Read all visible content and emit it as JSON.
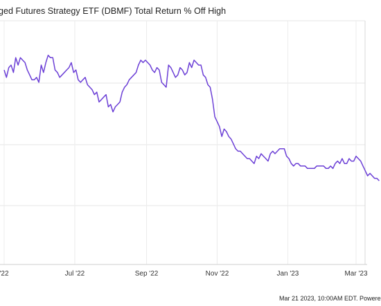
{
  "chart_data": {
    "type": "line",
    "title": "ged Futures Strategy ETF (DBMF) Total Return % Off High",
    "xlabel": "",
    "ylabel": "",
    "x_tick_labels": [
      "'22",
      "Jul '22",
      "Sep '22",
      "Nov '22",
      "Jan '23",
      "Mar '23"
    ],
    "x_tick_dates": [
      "2022-05-01",
      "2022-07-01",
      "2022-09-01",
      "2022-11-01",
      "2023-01-01",
      "2023-03-01"
    ],
    "y_tick_labels": [],
    "grid": true,
    "legend": "none",
    "series": [
      {
        "color": "#6b3fd6",
        "x": [
          "2022-05-01",
          "2022-05-03",
          "2022-05-05",
          "2022-05-07",
          "2022-05-09",
          "2022-05-11",
          "2022-05-13",
          "2022-05-15",
          "2022-05-17",
          "2022-05-19",
          "2022-05-21",
          "2022-05-23",
          "2022-05-25",
          "2022-05-27",
          "2022-05-29",
          "2022-05-31",
          "2022-06-02",
          "2022-06-04",
          "2022-06-06",
          "2022-06-08",
          "2022-06-10",
          "2022-06-12",
          "2022-06-14",
          "2022-06-16",
          "2022-06-18",
          "2022-06-20",
          "2022-06-22",
          "2022-06-24",
          "2022-06-26",
          "2022-06-28",
          "2022-06-30",
          "2022-07-02",
          "2022-07-04",
          "2022-07-06",
          "2022-07-08",
          "2022-07-10",
          "2022-07-12",
          "2022-07-14",
          "2022-07-16",
          "2022-07-18",
          "2022-07-20",
          "2022-07-22",
          "2022-07-24",
          "2022-07-26",
          "2022-07-28",
          "2022-07-30",
          "2022-08-01",
          "2022-08-03",
          "2022-08-05",
          "2022-08-07",
          "2022-08-09",
          "2022-08-11",
          "2022-08-13",
          "2022-08-15",
          "2022-08-17",
          "2022-08-19",
          "2022-08-21",
          "2022-08-23",
          "2022-08-25",
          "2022-08-27",
          "2022-08-29",
          "2022-08-31",
          "2022-09-02",
          "2022-09-04",
          "2022-09-06",
          "2022-09-08",
          "2022-09-10",
          "2022-09-12",
          "2022-09-14",
          "2022-09-16",
          "2022-09-18",
          "2022-09-20",
          "2022-09-22",
          "2022-09-24",
          "2022-09-26",
          "2022-09-28",
          "2022-09-30",
          "2022-10-02",
          "2022-10-04",
          "2022-10-06",
          "2022-10-08",
          "2022-10-10",
          "2022-10-12",
          "2022-10-14",
          "2022-10-16",
          "2022-10-18",
          "2022-10-20",
          "2022-10-22",
          "2022-10-24",
          "2022-10-26",
          "2022-10-28",
          "2022-10-30",
          "2022-11-01",
          "2022-11-03",
          "2022-11-05",
          "2022-11-07",
          "2022-11-09",
          "2022-11-11",
          "2022-11-13",
          "2022-11-15",
          "2022-11-17",
          "2022-11-19",
          "2022-11-21",
          "2022-11-23",
          "2022-11-25",
          "2022-11-27",
          "2022-11-29",
          "2022-12-01",
          "2022-12-03",
          "2022-12-05",
          "2022-12-07",
          "2022-12-09",
          "2022-12-11",
          "2022-12-13",
          "2022-12-15",
          "2022-12-17",
          "2022-12-19",
          "2022-12-21",
          "2022-12-23",
          "2022-12-25",
          "2022-12-27",
          "2022-12-29",
          "2022-12-31",
          "2023-01-02",
          "2023-01-04",
          "2023-01-06",
          "2023-01-08",
          "2023-01-10",
          "2023-01-12",
          "2023-01-14",
          "2023-01-16",
          "2023-01-18",
          "2023-01-20",
          "2023-01-22",
          "2023-01-24",
          "2023-01-26",
          "2023-01-28",
          "2023-01-30",
          "2023-02-01",
          "2023-02-03",
          "2023-02-05",
          "2023-02-07",
          "2023-02-09",
          "2023-02-11",
          "2023-02-13",
          "2023-02-15",
          "2023-02-17",
          "2023-02-19",
          "2023-02-21",
          "2023-02-23",
          "2023-02-25",
          "2023-02-27",
          "2023-03-01",
          "2023-03-03",
          "2023-03-05",
          "2023-03-07",
          "2023-03-09",
          "2023-03-11",
          "2023-03-13",
          "2023-03-15",
          "2023-03-17",
          "2023-03-19",
          "2023-03-21"
        ],
        "values": [
          -0.6,
          -0.9,
          -0.5,
          -0.4,
          -0.7,
          -0.1,
          -0.4,
          -0.1,
          -0.2,
          -0.3,
          -0.6,
          -0.8,
          -1.0,
          -1.0,
          -0.9,
          -1.1,
          -0.4,
          -0.7,
          -0.3,
          0.0,
          -0.1,
          -0.1,
          -0.6,
          -0.7,
          -0.9,
          -0.8,
          -0.7,
          -0.6,
          -0.5,
          -0.3,
          -0.7,
          -0.6,
          -1.0,
          -1.1,
          -1.0,
          -0.9,
          -1.2,
          -1.3,
          -1.4,
          -1.6,
          -1.5,
          -1.9,
          -1.8,
          -1.7,
          -1.6,
          -2.1,
          -2.0,
          -2.3,
          -2.1,
          -2.0,
          -1.9,
          -1.5,
          -1.3,
          -1.2,
          -1.0,
          -0.9,
          -0.8,
          -0.7,
          -0.4,
          -0.2,
          -0.3,
          -0.2,
          -0.3,
          -0.4,
          -0.6,
          -0.7,
          -0.5,
          -0.6,
          -1.1,
          -1.2,
          -1.3,
          -0.4,
          -0.5,
          -0.7,
          -0.9,
          -0.8,
          -0.5,
          -0.6,
          -0.8,
          -0.7,
          -0.3,
          -0.5,
          -0.2,
          -0.3,
          -0.4,
          -0.4,
          -0.8,
          -0.9,
          -1.2,
          -1.3,
          -1.8,
          -2.5,
          -2.7,
          -2.9,
          -3.3,
          -3.0,
          -3.1,
          -3.3,
          -3.4,
          -3.6,
          -3.8,
          -3.9,
          -3.9,
          -4.0,
          -4.1,
          -4.2,
          -4.2,
          -4.3,
          -4.4,
          -4.1,
          -4.2,
          -4.0,
          -4.1,
          -4.2,
          -4.3,
          -4.0,
          -3.9,
          -4.0,
          -3.9,
          -3.8,
          -3.8,
          -3.8,
          -4.1,
          -4.2,
          -4.4,
          -4.5,
          -4.4,
          -4.4,
          -4.5,
          -4.5,
          -4.5,
          -4.6,
          -4.6,
          -4.6,
          -4.6,
          -4.5,
          -4.5,
          -4.5,
          -4.5,
          -4.6,
          -4.6,
          -4.5,
          -4.6,
          -4.4,
          -4.3,
          -4.4,
          -4.2,
          -4.4,
          -4.4,
          -4.2,
          -4.3,
          -4.3,
          -4.1,
          -4.2,
          -4.3,
          -4.5,
          -4.7,
          -4.9,
          -4.8,
          -4.9,
          -5.0,
          -5.0,
          -5.1
        ],
        "ylim": [
          -8.5,
          1.4
        ]
      }
    ]
  },
  "footer": {
    "text": "Mar 21 2023, 10:00AM EDT. Powere"
  }
}
